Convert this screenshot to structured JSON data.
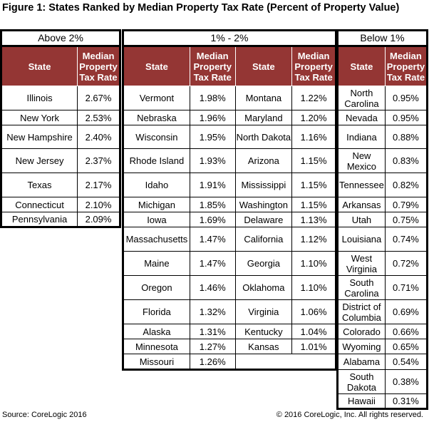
{
  "title": "Figure 1: States Ranked by Median Property Tax Rate (Percent of Property Value)",
  "headers": {
    "state": "State",
    "rate": "Median Property Tax Rate"
  },
  "sections": [
    {
      "label": "Above 2%",
      "columns": [
        [
          [
            "Illinois",
            "2.67%"
          ],
          [
            "New York",
            "2.53%"
          ],
          [
            "New Hampshire",
            "2.40%"
          ],
          [
            "New Jersey",
            "2.37%"
          ],
          [
            "Texas",
            "2.17%"
          ],
          [
            "Connecticut",
            "2.10%"
          ],
          [
            "Pennsylvania",
            "2.09%"
          ]
        ]
      ]
    },
    {
      "label": "1% - 2%",
      "columns": [
        [
          [
            "Vermont",
            "1.98%"
          ],
          [
            "Nebraska",
            "1.96%"
          ],
          [
            "Wisconsin",
            "1.95%"
          ],
          [
            "Rhode Island",
            "1.93%"
          ],
          [
            "Idaho",
            "1.91%"
          ],
          [
            "Michigan",
            "1.85%"
          ],
          [
            "Iowa",
            "1.69%"
          ],
          [
            "Massachusetts",
            "1.47%"
          ],
          [
            "Maine",
            "1.47%"
          ],
          [
            "Oregon",
            "1.46%"
          ],
          [
            "Florida",
            "1.32%"
          ],
          [
            "Alaska",
            "1.31%"
          ],
          [
            "Minnesota",
            "1.27%"
          ],
          [
            "Missouri",
            "1.26%"
          ]
        ],
        [
          [
            "Montana",
            "1.22%"
          ],
          [
            "Maryland",
            "1.20%"
          ],
          [
            "North Dakota",
            "1.16%"
          ],
          [
            "Arizona",
            "1.15%"
          ],
          [
            "Mississippi",
            "1.15%"
          ],
          [
            "Washington",
            "1.15%"
          ],
          [
            "Delaware",
            "1.13%"
          ],
          [
            "California",
            "1.12%"
          ],
          [
            "Georgia",
            "1.10%"
          ],
          [
            "Oklahoma",
            "1.10%"
          ],
          [
            "Virginia",
            "1.06%"
          ],
          [
            "Kentucky",
            "1.04%"
          ],
          [
            "Kansas",
            "1.01%"
          ]
        ]
      ]
    },
    {
      "label": "Below 1%",
      "columns": [
        [
          [
            "North Carolina",
            "0.95%"
          ],
          [
            "Nevada",
            "0.95%"
          ],
          [
            "Indiana",
            "0.88%"
          ],
          [
            "New Mexico",
            "0.83%"
          ],
          [
            "Tennessee",
            "0.82%"
          ],
          [
            "Arkansas",
            "0.79%"
          ],
          [
            "Utah",
            "0.75%"
          ],
          [
            "Louisiana",
            "0.74%"
          ],
          [
            "West Virginia",
            "0.72%"
          ],
          [
            "South Carolina",
            "0.71%"
          ],
          [
            "District of Columbia",
            "0.69%"
          ],
          [
            "Colorado",
            "0.66%"
          ],
          [
            "Wyoming",
            "0.65%"
          ],
          [
            "Alabama",
            "0.54%"
          ],
          [
            "South Dakota",
            "0.38%"
          ],
          [
            "Hawaii",
            "0.31%"
          ]
        ]
      ]
    }
  ],
  "colors": {
    "header_bg": "#943634"
  },
  "footer": {
    "source": "Source: CoreLogic 2016",
    "copyright": "© 2016 CoreLogic, Inc. All rights reserved."
  }
}
